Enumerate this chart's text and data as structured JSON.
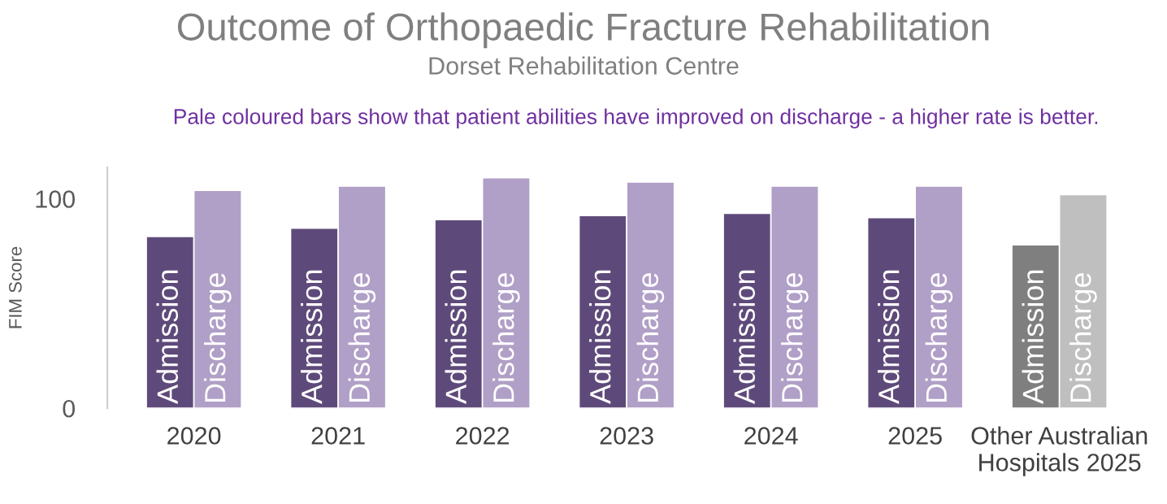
{
  "chart_data": {
    "type": "bar",
    "title": "Outcome of Orthopaedic Fracture Rehabilitation",
    "subtitle": "Dorset Rehabilitation Centre",
    "annotations": [
      "Pale coloured bars show that patient abilities have improved on discharge - a higher rate is better."
    ],
    "ylabel": "FIM Score",
    "categories": [
      "2020",
      "2021",
      "2022",
      "2023",
      "2024",
      "2025",
      "Other Australian\nHospitals 2025"
    ],
    "series": [
      {
        "name": "Admission",
        "colors": [
          "#5e4a7a",
          "#5e4a7a",
          "#5e4a7a",
          "#5e4a7a",
          "#5e4a7a",
          "#5e4a7a",
          "#7f7f7f"
        ],
        "values": [
          82,
          86,
          90,
          92,
          93,
          91,
          78
        ]
      },
      {
        "name": "Discharge",
        "colors": [
          "#b09fc6",
          "#b09fc6",
          "#b09fc6",
          "#b09fc6",
          "#b09fc6",
          "#b09fc6",
          "#bfbfbf"
        ],
        "values": [
          104,
          106,
          110,
          108,
          106,
          106,
          102
        ]
      }
    ],
    "ylim": [
      0,
      115
    ],
    "yticks": [
      0,
      100
    ],
    "grid": false,
    "legend": false
  }
}
